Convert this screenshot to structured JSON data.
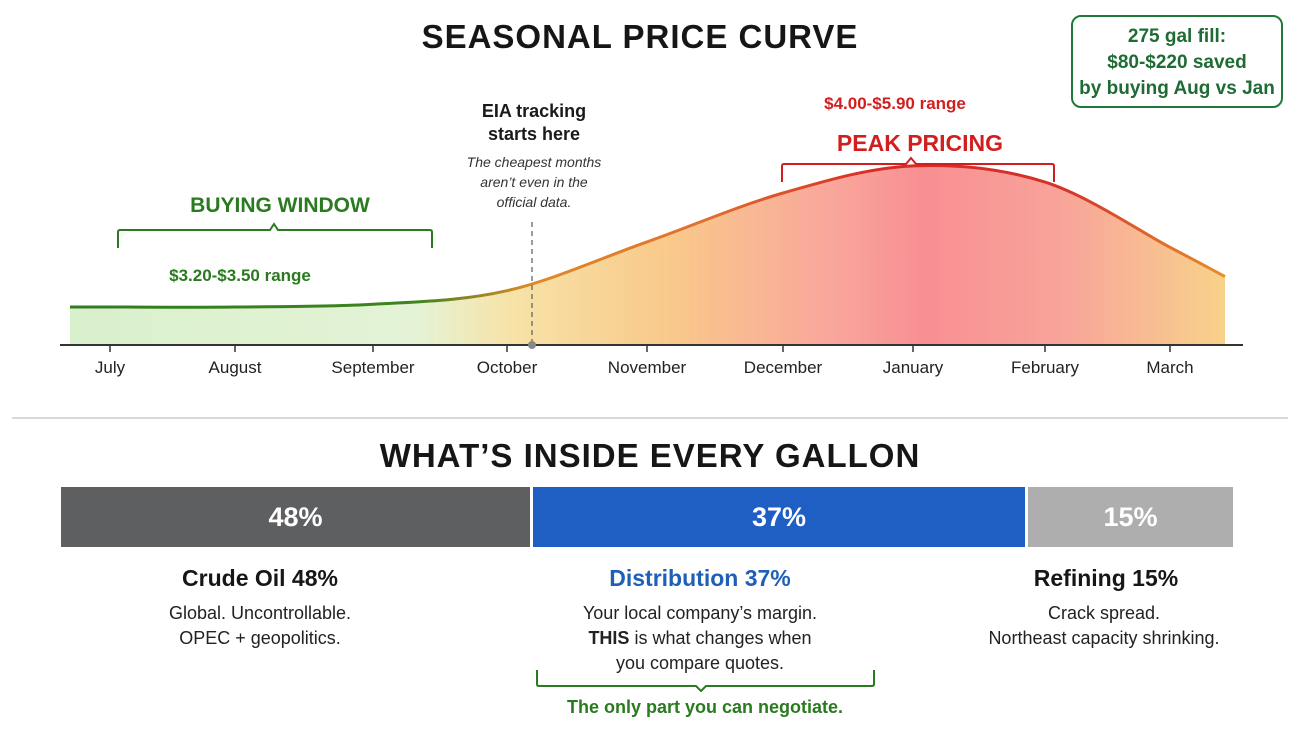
{
  "top_title": "SEASONAL PRICE CURVE",
  "savings_callout": {
    "line1": "275 gal fill:",
    "line2": "$80-$220 saved",
    "line3": "by buying Aug vs Jan"
  },
  "eia_note": {
    "title_line1": "EIA tracking",
    "title_line2": "starts here",
    "note_line1": "The cheapest months",
    "note_line2": "aren’t even in the",
    "note_line3": "official data."
  },
  "buying_window": {
    "label": "BUYING WINDOW",
    "range": "$3.20-$3.50 range",
    "color": "#2a7a1f"
  },
  "peak_pricing": {
    "label": "PEAK PRICING",
    "range": "$4.00-$5.90 range",
    "color": "#d11f1f"
  },
  "bottom_title": "WHAT’S INSIDE EVERY GALLON",
  "bottom_note": "The only part you can negotiate.",
  "components": [
    {
      "name": "Crude Oil  48%",
      "pct_label": "48%",
      "pct": 48,
      "color": "#5e5f61",
      "desc1": "Global. Uncontrollable.",
      "desc2": "OPEC + geopolitics.",
      "title_color": "#161616"
    },
    {
      "name": "Distribution 37%",
      "pct_label": "37%",
      "pct": 37,
      "color": "#1f5fc4",
      "desc1": "Your local company’s margin.",
      "desc2_bold": "THIS",
      "desc2_rest": " is what changes when",
      "desc3": "you compare quotes.",
      "title_color": "#1f5fb8"
    },
    {
      "name": "Refining 15%",
      "pct_label": "15%",
      "pct": 15,
      "color": "#aeaeae",
      "desc1": "Crack spread.",
      "desc2": "Northeast capacity shrinking.",
      "title_color": "#161616"
    }
  ],
  "chart_data": {
    "type": "area",
    "title": "SEASONAL PRICE CURVE",
    "categories": [
      "July",
      "August",
      "September",
      "October",
      "November",
      "December",
      "January",
      "February",
      "March"
    ],
    "series": [
      {
        "values": [
          3.3,
          3.3,
          3.35,
          3.6,
          4.5,
          5.4,
          5.9,
          5.6,
          4.4
        ]
      }
    ],
    "annotations": [
      "BUYING WINDOW",
      "$3.20-$3.50 range",
      "PEAK PRICING",
      "$4.00-$5.90 range",
      "EIA tracking starts here"
    ],
    "grid": false
  }
}
